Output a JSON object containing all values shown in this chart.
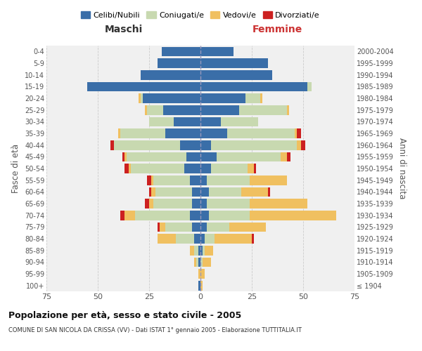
{
  "age_groups": [
    "100+",
    "95-99",
    "90-94",
    "85-89",
    "80-84",
    "75-79",
    "70-74",
    "65-69",
    "60-64",
    "55-59",
    "50-54",
    "45-49",
    "40-44",
    "35-39",
    "30-34",
    "25-29",
    "20-24",
    "15-19",
    "10-14",
    "5-9",
    "0-4"
  ],
  "birth_years": [
    "≤ 1904",
    "1905-1909",
    "1910-1914",
    "1915-1919",
    "1920-1924",
    "1925-1929",
    "1930-1934",
    "1935-1939",
    "1940-1944",
    "1945-1949",
    "1950-1954",
    "1955-1959",
    "1960-1964",
    "1965-1969",
    "1970-1974",
    "1975-1979",
    "1980-1984",
    "1985-1989",
    "1990-1994",
    "1995-1999",
    "2000-2004"
  ],
  "males": {
    "celibi": [
      1,
      0,
      1,
      1,
      3,
      4,
      5,
      4,
      4,
      5,
      8,
      7,
      10,
      17,
      13,
      18,
      28,
      55,
      29,
      21,
      19
    ],
    "coniugati": [
      0,
      0,
      1,
      2,
      9,
      13,
      27,
      19,
      18,
      18,
      26,
      29,
      32,
      22,
      12,
      8,
      1,
      0,
      0,
      0,
      0
    ],
    "vedovi": [
      0,
      1,
      1,
      2,
      9,
      3,
      5,
      2,
      2,
      1,
      1,
      1,
      0,
      1,
      0,
      1,
      1,
      0,
      0,
      0,
      0
    ],
    "divorziati": [
      0,
      0,
      0,
      0,
      0,
      1,
      2,
      2,
      1,
      2,
      2,
      1,
      2,
      0,
      0,
      0,
      0,
      0,
      0,
      0,
      0
    ]
  },
  "females": {
    "nubili": [
      0,
      0,
      0,
      1,
      2,
      3,
      4,
      3,
      4,
      3,
      5,
      8,
      5,
      13,
      10,
      19,
      22,
      52,
      35,
      33,
      16
    ],
    "coniugate": [
      0,
      0,
      1,
      1,
      5,
      11,
      20,
      21,
      16,
      21,
      18,
      31,
      42,
      33,
      18,
      23,
      7,
      2,
      0,
      0,
      0
    ],
    "vedove": [
      1,
      2,
      4,
      4,
      18,
      18,
      42,
      28,
      13,
      18,
      3,
      3,
      2,
      1,
      0,
      1,
      1,
      0,
      0,
      0,
      0
    ],
    "divorziate": [
      0,
      0,
      0,
      0,
      1,
      0,
      0,
      0,
      1,
      0,
      1,
      2,
      2,
      2,
      0,
      0,
      0,
      0,
      0,
      0,
      0
    ]
  },
  "colors": {
    "celibi": "#3a6ea8",
    "coniugati": "#c8d9b0",
    "vedovi": "#f0c060",
    "divorziati": "#cc2020"
  },
  "title": "Popolazione per età, sesso e stato civile - 2005",
  "subtitle": "COMUNE DI SAN NICOLA DA CRISSA (VV) - Dati ISTAT 1° gennaio 2005 - Elaborazione TUTTITALIA.IT",
  "ylabel_left": "Fasce di età",
  "ylabel_right": "Anni di nascita",
  "xlabel_left": "Maschi",
  "xlabel_right": "Femmine",
  "xlim": 75,
  "bg_color": "#f0f0f0",
  "grid_color": "#cccccc"
}
